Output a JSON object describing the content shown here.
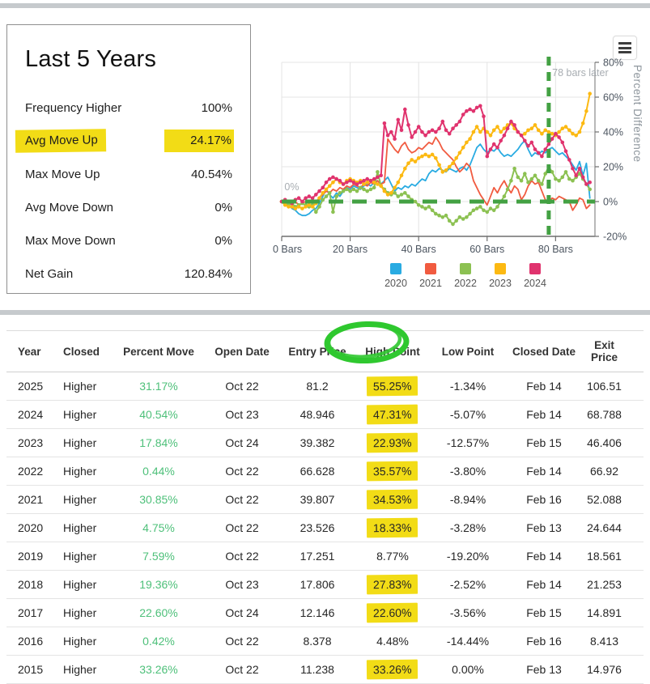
{
  "colors": {
    "highlight_yellow": "#F2DC16",
    "circle_green": "#2FC82F",
    "reference_green": "#43A143",
    "positive_text_green": "#4EC07A",
    "divider_gray": "#C6CACD"
  },
  "stats_panel": {
    "title": "Last 5 Years",
    "rows": [
      {
        "label": "Frequency Higher",
        "value": "100%",
        "highlighted": false
      },
      {
        "label": "Avg Move Up",
        "value": "24.17%",
        "highlighted": true
      },
      {
        "label": "Max Move Up",
        "value": "40.54%",
        "highlighted": false
      },
      {
        "label": "Avg Move Down",
        "value": "0%",
        "highlighted": false
      },
      {
        "label": "Max Move Down",
        "value": "0%",
        "highlighted": false
      },
      {
        "label": "Net Gain",
        "value": "120.84%",
        "highlighted": false
      }
    ]
  },
  "chart_data": {
    "type": "line",
    "title": "",
    "xlabel": "Bars",
    "ylabel": "Percent Difference",
    "xlim": [
      0,
      91.5
    ],
    "ylim": [
      -20,
      80
    ],
    "xticks": [
      0,
      20,
      40,
      60,
      80
    ],
    "xtick_labels": [
      "0 Bars",
      "20 Bars",
      "40 Bars",
      "60 Bars",
      "80 Bars"
    ],
    "yticks": [
      -20,
      0,
      20,
      40,
      60,
      80
    ],
    "ytick_suffix": "%",
    "grid": true,
    "legend_position": "bottom",
    "reference_lines": {
      "horizontal_value": 0,
      "vertical_bar": 78
    },
    "annotations": [
      {
        "text": "0%",
        "bar": 0.8,
        "value": 6.5,
        "anchor": "start"
      },
      {
        "text": "78 bars later",
        "bar": 79,
        "value": 72,
        "anchor": "start"
      }
    ],
    "series": [
      {
        "name": "2020",
        "color": "#29ABE2",
        "markers": false,
        "values": [
          0,
          -1,
          -2,
          -4,
          -5,
          -7,
          -8,
          -8,
          -7,
          -5,
          -4,
          -1,
          3,
          7,
          4,
          2,
          5,
          3,
          6,
          8,
          7,
          9,
          8,
          7,
          9,
          10,
          9,
          11,
          12,
          10,
          12,
          14,
          10,
          6,
          8,
          7,
          9,
          8,
          10,
          9,
          11,
          13,
          12,
          16,
          18,
          17,
          19,
          18,
          17,
          19,
          18,
          17,
          19,
          20,
          18,
          21,
          26,
          31,
          33,
          30,
          28,
          30,
          29,
          31,
          28,
          26,
          27,
          26,
          28,
          30,
          33,
          35,
          30,
          26,
          28,
          27,
          29,
          28,
          30,
          31,
          29,
          27,
          28,
          26,
          24,
          21,
          18,
          23,
          15,
          22,
          2
        ]
      },
      {
        "name": "2021",
        "color": "#F15B40",
        "markers": false,
        "values": [
          0,
          1,
          0,
          -1,
          0,
          -2,
          -1,
          0,
          -1,
          1,
          0,
          2,
          4,
          6,
          5,
          7,
          6,
          8,
          7,
          9,
          8,
          10,
          9,
          8,
          10,
          9,
          11,
          10,
          12,
          10,
          11,
          36,
          33,
          30,
          28,
          32,
          34,
          30,
          28,
          29,
          31,
          30,
          32,
          34,
          33,
          37,
          34,
          30,
          28,
          26,
          24,
          20,
          17,
          19,
          22,
          20,
          12,
          8,
          4,
          1,
          -2,
          3,
          8,
          5,
          9,
          12,
          8,
          5,
          9,
          7,
          1,
          4,
          9,
          12,
          10,
          11,
          6,
          1,
          0,
          2,
          1,
          3,
          2,
          1,
          0,
          -5,
          -2,
          2,
          1,
          -4,
          -2
        ]
      },
      {
        "name": "2022",
        "color": "#8CC152",
        "markers": true,
        "values": [
          0,
          -1,
          -2,
          -1,
          -3,
          -2,
          -1,
          -2,
          -3,
          -2,
          -6,
          -3,
          1,
          3,
          5,
          -6,
          3,
          5,
          6,
          7,
          6,
          7,
          6,
          8,
          7,
          6,
          7,
          8,
          17,
          9,
          7,
          5,
          4,
          5,
          3,
          4,
          5,
          3,
          1,
          0,
          -2,
          -3,
          -4,
          -3,
          -5,
          -7,
          -8,
          -9,
          -8,
          -11,
          -13,
          -11,
          -9,
          -10,
          -9,
          -7,
          -5,
          -4,
          -3,
          -5,
          -6,
          -4,
          -5,
          -3,
          0,
          3,
          7,
          12,
          19,
          14,
          12,
          16,
          11,
          13,
          15,
          12,
          10,
          16,
          20,
          17,
          13,
          12,
          14,
          17,
          13,
          12,
          14,
          16,
          13,
          10,
          7
        ]
      },
      {
        "name": "2023",
        "color": "#FCB912",
        "markers": true,
        "values": [
          0,
          -2,
          -3,
          -3,
          -4,
          -3,
          -4,
          -3,
          -2,
          -3,
          -1,
          2,
          5,
          7,
          9,
          11,
          13,
          11,
          10,
          12,
          13,
          12,
          11,
          12,
          10,
          11,
          12,
          11,
          10,
          9,
          6,
          4,
          5,
          8,
          11,
          15,
          19,
          22,
          24,
          23,
          25,
          26,
          27,
          26,
          27,
          25,
          21,
          17,
          18,
          20,
          22,
          25,
          28,
          31,
          34,
          36,
          40,
          43,
          40,
          42,
          40,
          38,
          41,
          43,
          40,
          42,
          44,
          45,
          42,
          40,
          38,
          39,
          41,
          42,
          44,
          41,
          39,
          41,
          40,
          39,
          38,
          40,
          42,
          43,
          41,
          39,
          38,
          40,
          45,
          52,
          62
        ]
      },
      {
        "name": "2024",
        "color": "#E0336E",
        "markers": true,
        "values": [
          0,
          1,
          0,
          -1,
          1,
          2,
          0,
          2,
          3,
          2,
          4,
          6,
          8,
          11,
          13,
          14,
          13,
          12,
          10,
          11,
          12,
          11,
          10,
          11,
          12,
          13,
          12,
          13,
          14,
          15,
          45,
          38,
          40,
          36,
          47,
          41,
          53,
          44,
          37,
          40,
          43,
          40,
          38,
          40,
          41,
          40,
          42,
          46,
          41,
          39,
          42,
          44,
          46,
          50,
          52,
          53,
          52,
          54,
          55,
          49,
          26,
          30,
          33,
          31,
          35,
          38,
          42,
          46,
          44,
          40,
          38,
          35,
          32,
          34,
          30,
          28,
          26,
          30,
          33,
          36,
          39,
          37,
          34,
          29,
          24,
          19,
          15,
          19,
          14,
          10,
          11
        ]
      }
    ]
  },
  "table": {
    "columns": [
      "Year",
      "Closed",
      "Percent Move",
      "Open Date",
      "Entry Price",
      "High Point",
      "Low Point",
      "Closed Date",
      "Exit Price"
    ],
    "circled_column": "High Point",
    "rows": [
      {
        "year": "2025",
        "closed": "Higher",
        "percent_move": "31.17%",
        "open_date": "Oct 22",
        "entry_price": "81.2",
        "high_point": "55.25%",
        "high_point_highlighted": true,
        "low_point": "-1.34%",
        "closed_date": "Feb 14",
        "exit_price": "106.51"
      },
      {
        "year": "2024",
        "closed": "Higher",
        "percent_move": "40.54%",
        "open_date": "Oct 23",
        "entry_price": "48.946",
        "high_point": "47.31%",
        "high_point_highlighted": true,
        "low_point": "-5.07%",
        "closed_date": "Feb 14",
        "exit_price": "68.788"
      },
      {
        "year": "2023",
        "closed": "Higher",
        "percent_move": "17.84%",
        "open_date": "Oct 24",
        "entry_price": "39.382",
        "high_point": "22.93%",
        "high_point_highlighted": true,
        "low_point": "-12.57%",
        "closed_date": "Feb 15",
        "exit_price": "46.406"
      },
      {
        "year": "2022",
        "closed": "Higher",
        "percent_move": "0.44%",
        "open_date": "Oct 22",
        "entry_price": "66.628",
        "high_point": "35.57%",
        "high_point_highlighted": true,
        "low_point": "-3.80%",
        "closed_date": "Feb 14",
        "exit_price": "66.92"
      },
      {
        "year": "2021",
        "closed": "Higher",
        "percent_move": "30.85%",
        "open_date": "Oct 22",
        "entry_price": "39.807",
        "high_point": "34.53%",
        "high_point_highlighted": true,
        "low_point": "-8.94%",
        "closed_date": "Feb 16",
        "exit_price": "52.088"
      },
      {
        "year": "2020",
        "closed": "Higher",
        "percent_move": "4.75%",
        "open_date": "Oct 22",
        "entry_price": "23.526",
        "high_point": "18.33%",
        "high_point_highlighted": true,
        "low_point": "-3.28%",
        "closed_date": "Feb 13",
        "exit_price": "24.644"
      },
      {
        "year": "2019",
        "closed": "Higher",
        "percent_move": "7.59%",
        "open_date": "Oct 22",
        "entry_price": "17.251",
        "high_point": "8.77%",
        "high_point_highlighted": false,
        "low_point": "-19.20%",
        "closed_date": "Feb 14",
        "exit_price": "18.561"
      },
      {
        "year": "2018",
        "closed": "Higher",
        "percent_move": "19.36%",
        "open_date": "Oct 23",
        "entry_price": "17.806",
        "high_point": "27.83%",
        "high_point_highlighted": true,
        "low_point": "-2.52%",
        "closed_date": "Feb 14",
        "exit_price": "21.253"
      },
      {
        "year": "2017",
        "closed": "Higher",
        "percent_move": "22.60%",
        "open_date": "Oct 24",
        "entry_price": "12.146",
        "high_point": "22.60%",
        "high_point_highlighted": true,
        "low_point": "-3.56%",
        "closed_date": "Feb 15",
        "exit_price": "14.891"
      },
      {
        "year": "2016",
        "closed": "Higher",
        "percent_move": "0.42%",
        "open_date": "Oct 22",
        "entry_price": "8.378",
        "high_point": "4.48%",
        "high_point_highlighted": false,
        "low_point": "-14.44%",
        "closed_date": "Feb 16",
        "exit_price": "8.413"
      },
      {
        "year": "2015",
        "closed": "Higher",
        "percent_move": "33.26%",
        "open_date": "Oct 22",
        "entry_price": "11.238",
        "high_point": "33.26%",
        "high_point_highlighted": true,
        "low_point": "0.00%",
        "closed_date": "Feb 13",
        "exit_price": "14.976"
      }
    ]
  }
}
